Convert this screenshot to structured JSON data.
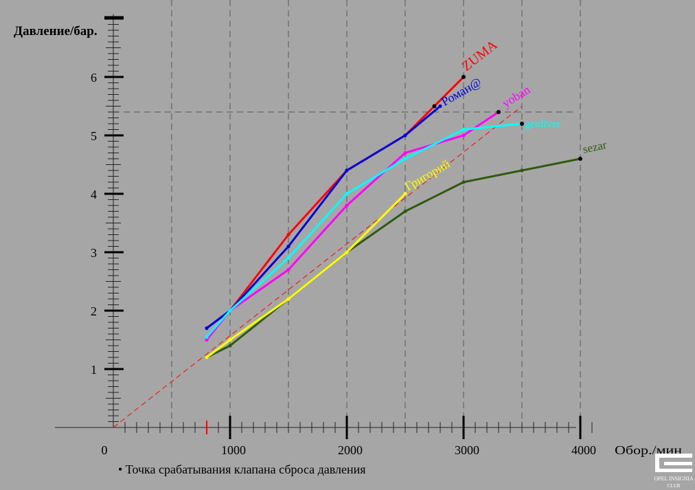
{
  "chart_data": {
    "type": "line",
    "ylabel": "Давление/бар.",
    "xlabel": "Обор./мин",
    "xlim": [
      0,
      4200
    ],
    "ylim": [
      0,
      7.1
    ],
    "x_ticks": [
      0,
      1000,
      2000,
      3000,
      4000
    ],
    "x_tick_labels": [
      "0",
      "1000",
      "2000",
      "3000",
      "4000"
    ],
    "y_ticks": [
      1,
      2,
      3,
      4,
      5,
      6
    ],
    "y_tick_labels": [
      "1",
      "2",
      "3",
      "4",
      "5",
      "6"
    ],
    "grid": true,
    "footnote": "• Точка срабатывания клапана сброса давления",
    "series": [
      {
        "name": "ZUMA",
        "color": "#ff0000",
        "x": [
          800,
          1000,
          1500,
          2000,
          2500,
          3000
        ],
        "y": [
          1.7,
          2.0,
          3.3,
          4.4,
          5.0,
          6.0
        ],
        "relief": [
          3000,
          6.0
        ]
      },
      {
        "name": "Роман@",
        "color": "#0000d8",
        "x": [
          800,
          1000,
          1500,
          2000,
          2500,
          2800
        ],
        "y": [
          1.7,
          2.0,
          3.1,
          4.4,
          5.0,
          5.5
        ],
        "relief": [
          2750,
          5.5
        ]
      },
      {
        "name": "yoban",
        "color": "#ff00ff",
        "x": [
          800,
          1000,
          1500,
          2000,
          2500,
          3000,
          3300
        ],
        "y": [
          1.5,
          2.0,
          2.7,
          3.8,
          4.7,
          5.0,
          5.4
        ],
        "relief": [
          3300,
          5.4
        ]
      },
      {
        "name": "geoliver",
        "color": "#00ffff",
        "x": [
          800,
          1000,
          1500,
          2000,
          2500,
          3000,
          3500
        ],
        "y": [
          1.55,
          2.0,
          2.9,
          4.0,
          4.6,
          5.1,
          5.2
        ],
        "relief": [
          3500,
          5.2
        ]
      },
      {
        "name": "sezar",
        "color": "#2e5a0e",
        "x": [
          800,
          1000,
          1500,
          2000,
          2500,
          3000,
          3500,
          4000
        ],
        "y": [
          1.2,
          1.4,
          2.2,
          3.0,
          3.7,
          4.2,
          4.4,
          4.6
        ],
        "relief": [
          4000,
          4.6
        ]
      },
      {
        "name": "Григорий",
        "color": "#ffff00",
        "x": [
          800,
          1000,
          1500,
          2000,
          2500
        ],
        "y": [
          1.2,
          1.5,
          2.2,
          3.0,
          4.0
        ],
        "relief": null
      }
    ],
    "reference_line": {
      "color": "#ff0000",
      "x": [
        0,
        3500
      ],
      "y": [
        0,
        5.5
      ]
    },
    "marked_x_tick": {
      "value": 800,
      "color": "#ff0000"
    },
    "reference_y_gridline": 5.4
  },
  "logo": {
    "text": "OPEL INSIGNIA",
    "subtext": "CLUB"
  }
}
